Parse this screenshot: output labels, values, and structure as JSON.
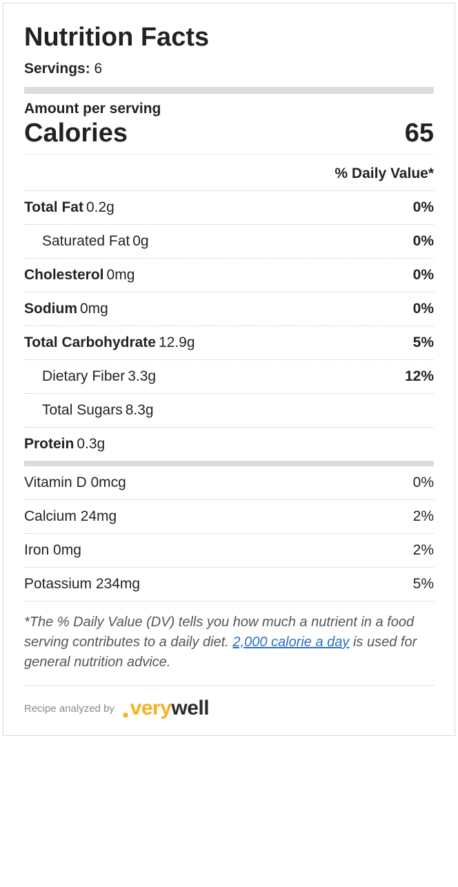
{
  "colors": {
    "text": "#222222",
    "muted": "#555555",
    "caption": "#8a8a8a",
    "bar": "#dcdcdc",
    "border": "#d9d9d9",
    "dotted": "#c8c8c8",
    "link": "#2a6ebb",
    "brand_accent": "#f3b21b",
    "brand_dark": "#2b2b2b",
    "background": "#ffffff"
  },
  "title": "Nutrition Facts",
  "servings": {
    "label": "Servings:",
    "value": "6"
  },
  "amount_per_serving_label": "Amount per serving",
  "calories": {
    "label": "Calories",
    "value": "65"
  },
  "dv_header": "% Daily Value*",
  "nutrients": [
    {
      "name": "Total Fat",
      "amount": "0.2g",
      "dv": "0%",
      "sub": false
    },
    {
      "name": "Saturated Fat",
      "amount": "0g",
      "dv": "0%",
      "sub": true
    },
    {
      "name": "Cholesterol",
      "amount": "0mg",
      "dv": "0%",
      "sub": false
    },
    {
      "name": "Sodium",
      "amount": "0mg",
      "dv": "0%",
      "sub": false
    },
    {
      "name": "Total Carbohydrate",
      "amount": "12.9g",
      "dv": "5%",
      "sub": false
    },
    {
      "name": "Dietary Fiber",
      "amount": "3.3g",
      "dv": "12%",
      "sub": true
    },
    {
      "name": "Total Sugars",
      "amount": "8.3g",
      "dv": "",
      "sub": true
    },
    {
      "name": "Protein",
      "amount": "0.3g",
      "dv": "",
      "sub": false
    }
  ],
  "micronutrients": [
    {
      "name": "Vitamin D",
      "amount": "0mcg",
      "dv": "0%"
    },
    {
      "name": "Calcium",
      "amount": "24mg",
      "dv": "2%"
    },
    {
      "name": "Iron",
      "amount": "0mg",
      "dv": "2%"
    },
    {
      "name": "Potassium",
      "amount": "234mg",
      "dv": "5%"
    }
  ],
  "footnote": {
    "pre": "*The % Daily Value (DV) tells you how much a nutrient in a food serving contributes to a daily diet. ",
    "link_text": "2,000 calorie a day",
    "post": " is used for general nutrition advice."
  },
  "analyzed": {
    "label": "Recipe analyzed by",
    "brand_very": "very",
    "brand_well": "well"
  }
}
